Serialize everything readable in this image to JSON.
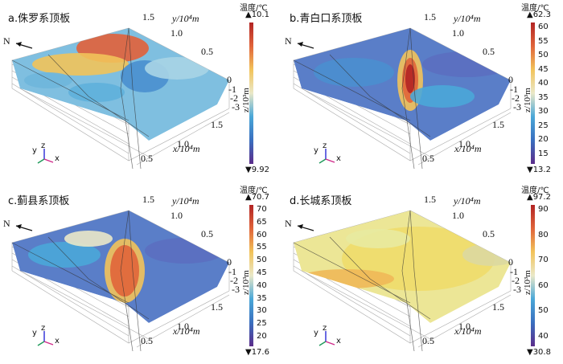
{
  "panels": [
    {
      "title": "a.侏罗系顶板",
      "north": "N",
      "colorbar": {
        "title": "温度/℃",
        "max": "▲10.1",
        "min": "▼9.92",
        "ticks": []
      },
      "gradient": [
        "#5b2c8a",
        "#3a6fbf",
        "#4aa7d8",
        "#eae8c8",
        "#f2c35a",
        "#e0643a",
        "#b22424"
      ]
    },
    {
      "title": "b.青白口系顶板",
      "north": "N",
      "colorbar": {
        "title": "温度/℃",
        "max": "▲62.3",
        "min": "▼13.2",
        "ticks": [
          "60",
          "55",
          "50",
          "45",
          "40",
          "35",
          "30",
          "25",
          "20",
          "15"
        ]
      },
      "gradient": [
        "#5b2c8a",
        "#3a6fbf",
        "#4aa7d8",
        "#eae8c8",
        "#f2c35a",
        "#e0643a",
        "#b22424"
      ]
    },
    {
      "title": "c.蓟县系顶板",
      "north": "N",
      "colorbar": {
        "title": "温度/℃",
        "max": "▲70.7",
        "min": "▼17.6",
        "ticks": [
          "70",
          "65",
          "60",
          "55",
          "50",
          "45",
          "40",
          "35",
          "30",
          "25",
          "20"
        ]
      },
      "gradient": [
        "#5b2c8a",
        "#3a6fbf",
        "#4aa7d8",
        "#eae8c8",
        "#f2c35a",
        "#e0643a",
        "#b22424"
      ]
    },
    {
      "title": "d.长城系顶板",
      "north": "N",
      "colorbar": {
        "title": "温度/℃",
        "max": "▲97.2",
        "min": "▼30.8",
        "ticks": [
          "90",
          "80",
          "70",
          "60",
          "50",
          "40"
        ]
      },
      "gradient": [
        "#5b2c8a",
        "#3a6fbf",
        "#4aa7d8",
        "#eae8c8",
        "#f2c35a",
        "#e0643a",
        "#b22424"
      ]
    }
  ],
  "axes": {
    "y_label": "y/10⁴m",
    "x_label": "x/10⁴m",
    "z_label": "z/10³m",
    "y_ticks": [
      "1.5",
      "1.0",
      "0.5"
    ],
    "x_ticks": [
      "1.5",
      "1.0",
      "0.5"
    ],
    "z_ticks": [
      "0",
      "-1",
      "-2",
      "-3"
    ],
    "triad": {
      "y": "y",
      "z": "z",
      "x": "x"
    }
  }
}
